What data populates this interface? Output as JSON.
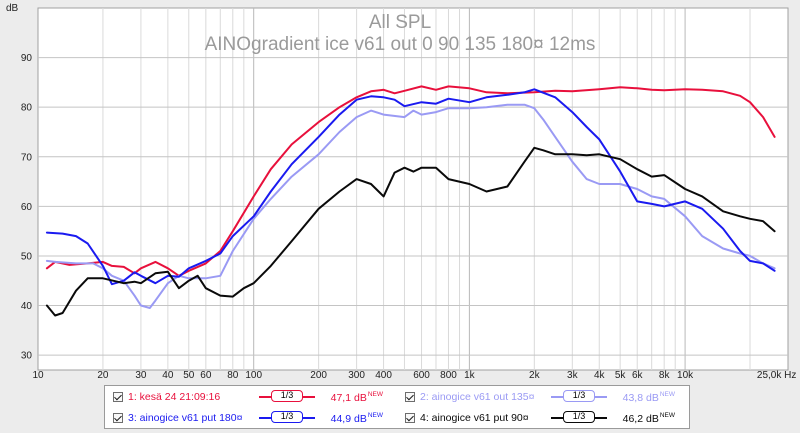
{
  "chart_data": {
    "type": "line",
    "title": "All SPL",
    "subtitle": "AINOgradient ice v61 out 0 90 135 180¤ 12ms",
    "ylabel": "dB",
    "xlabel": "",
    "x_scale": "log",
    "xlim": [
      10,
      30000
    ],
    "ylim": [
      27,
      100
    ],
    "grid": true,
    "x_ticks": [
      {
        "v": 10,
        "label": "10"
      },
      {
        "v": 20,
        "label": "20"
      },
      {
        "v": 30,
        "label": "30"
      },
      {
        "v": 40,
        "label": "40"
      },
      {
        "v": 50,
        "label": "50"
      },
      {
        "v": 60,
        "label": "60"
      },
      {
        "v": 80,
        "label": "80"
      },
      {
        "v": 100,
        "label": "100"
      },
      {
        "v": 200,
        "label": "200"
      },
      {
        "v": 300,
        "label": "300"
      },
      {
        "v": 400,
        "label": "400"
      },
      {
        "v": 600,
        "label": "600"
      },
      {
        "v": 800,
        "label": "800"
      },
      {
        "v": 1000,
        "label": "1k"
      },
      {
        "v": 2000,
        "label": "2k"
      },
      {
        "v": 3000,
        "label": "3k"
      },
      {
        "v": 4000,
        "label": "4k"
      },
      {
        "v": 5000,
        "label": "5k"
      },
      {
        "v": 6000,
        "label": "6k"
      },
      {
        "v": 8000,
        "label": "8k"
      },
      {
        "v": 10000,
        "label": "10k"
      },
      {
        "v": 25000,
        "label": "25,0k Hz"
      }
    ],
    "y_ticks": [
      30,
      40,
      50,
      60,
      70,
      80,
      90
    ],
    "series": [
      {
        "name": "1: kesä 24 21:09:16",
        "color": "#e8103c",
        "x": [
          11,
          12,
          14,
          17,
          20,
          22,
          25,
          28,
          30,
          35,
          40,
          45,
          50,
          60,
          70,
          80,
          100,
          120,
          150,
          200,
          250,
          300,
          350,
          400,
          450,
          500,
          600,
          700,
          800,
          1000,
          1200,
          1500,
          2000,
          2500,
          3000,
          4000,
          5000,
          6000,
          7000,
          8000,
          10000,
          12000,
          15000,
          18000,
          20000,
          23000,
          26000
        ],
        "y": [
          47.5,
          48.8,
          48.2,
          48.5,
          48.8,
          48.0,
          47.8,
          46.5,
          47.5,
          48.8,
          47.5,
          46.0,
          47.0,
          48.5,
          51.0,
          55.0,
          62.0,
          67.5,
          72.5,
          77.0,
          80.0,
          82.0,
          83.2,
          83.5,
          82.8,
          83.3,
          84.2,
          83.5,
          84.2,
          83.8,
          83.0,
          82.8,
          83.0,
          83.3,
          83.2,
          83.6,
          84.0,
          83.8,
          83.5,
          83.4,
          83.6,
          83.5,
          83.2,
          82.3,
          81.0,
          78.0,
          74.0
        ]
      },
      {
        "name": "2: ainogice v61 out 135¤",
        "color": "#9a9af4",
        "x": [
          11,
          12,
          15,
          18,
          20,
          22,
          25,
          28,
          30,
          33,
          35,
          40,
          45,
          50,
          60,
          70,
          80,
          100,
          120,
          150,
          200,
          250,
          300,
          350,
          400,
          500,
          550,
          600,
          700,
          800,
          1000,
          1200,
          1500,
          1800,
          2000,
          2200,
          2500,
          3000,
          3500,
          4000,
          5000,
          6000,
          7000,
          8000,
          10000,
          12000,
          15000,
          18000,
          20000,
          23000,
          26000
        ],
        "y": [
          49.0,
          48.8,
          48.5,
          48.5,
          47.5,
          46.0,
          45.0,
          42.0,
          40.0,
          39.5,
          41.0,
          44.5,
          46.0,
          45.5,
          45.5,
          46.0,
          51.0,
          57.5,
          61.5,
          66.0,
          70.5,
          75.0,
          78.0,
          79.3,
          78.5,
          78.0,
          79.3,
          78.5,
          79.0,
          79.8,
          79.8,
          80.0,
          80.5,
          80.5,
          79.8,
          77.5,
          74.0,
          69.0,
          65.5,
          64.5,
          64.5,
          63.5,
          62.0,
          61.5,
          58.0,
          54.0,
          51.5,
          50.5,
          50.0,
          48.5,
          47.5
        ]
      },
      {
        "name": "3: ainogice v61 put 180¤",
        "color": "#1a1af0",
        "x": [
          11,
          13,
          15,
          17,
          20,
          22,
          25,
          28,
          30,
          35,
          40,
          45,
          50,
          60,
          70,
          80,
          100,
          120,
          150,
          200,
          250,
          300,
          350,
          400,
          450,
          500,
          600,
          700,
          800,
          1000,
          1200,
          1500,
          1800,
          2000,
          2500,
          3000,
          3500,
          4000,
          5000,
          6000,
          7000,
          8000,
          10000,
          12000,
          15000,
          18000,
          20000,
          23000,
          26000
        ],
        "y": [
          54.7,
          54.5,
          54.0,
          52.5,
          48.0,
          44.3,
          45.0,
          46.7,
          46.0,
          44.5,
          46.0,
          45.8,
          47.5,
          49.0,
          50.5,
          54.0,
          58.0,
          63.0,
          68.5,
          74.0,
          78.5,
          81.5,
          82.2,
          82.0,
          81.5,
          80.2,
          81.0,
          80.7,
          81.7,
          81.0,
          82.0,
          82.5,
          83.0,
          83.6,
          82.0,
          79.0,
          76.0,
          73.5,
          67.0,
          61.0,
          60.5,
          60.0,
          61.0,
          59.5,
          55.5,
          51.0,
          49.0,
          48.5,
          47.0
        ]
      },
      {
        "name": "4: ainogice v61 put 90¤",
        "color": "#0a0a0a",
        "x": [
          11,
          12,
          13,
          15,
          17,
          20,
          25,
          28,
          30,
          35,
          40,
          45,
          50,
          55,
          60,
          70,
          80,
          90,
          100,
          120,
          150,
          200,
          250,
          300,
          350,
          400,
          450,
          500,
          550,
          600,
          700,
          800,
          1000,
          1200,
          1500,
          1800,
          2000,
          2200,
          2500,
          3000,
          3500,
          4000,
          5000,
          6000,
          7000,
          8000,
          10000,
          12000,
          15000,
          18000,
          20000,
          23000,
          26000
        ],
        "y": [
          40.0,
          38.0,
          38.5,
          43.0,
          45.5,
          45.5,
          44.5,
          44.8,
          44.5,
          46.5,
          46.8,
          43.5,
          45.0,
          46.0,
          43.5,
          42.0,
          41.8,
          43.5,
          44.5,
          48.0,
          53.0,
          59.5,
          63.0,
          65.5,
          64.5,
          62.0,
          66.8,
          67.8,
          67.0,
          67.8,
          67.8,
          65.5,
          64.5,
          63.0,
          64.0,
          69.0,
          71.8,
          71.3,
          70.5,
          70.5,
          70.3,
          70.5,
          69.5,
          67.5,
          66.0,
          66.3,
          63.5,
          62.0,
          59.0,
          58.0,
          57.5,
          57.0,
          55.0
        ]
      }
    ]
  },
  "legend": [
    {
      "label": "1: kesä 24 21:09:16",
      "smoothing": "1/3",
      "level": "47,1 dB",
      "tag": "NEW",
      "color": "#e8103c"
    },
    {
      "label": "2: ainogice v61 out 135¤",
      "smoothing": "1/3",
      "level": "43,8 dB",
      "tag": "NEW",
      "color": "#9a9af4"
    },
    {
      "label": "3: ainogice v61 put 180¤",
      "smoothing": "1/3",
      "level": "44,9 dB",
      "tag": "NEW",
      "color": "#1a1af0"
    },
    {
      "label": "4: ainogice v61 put 90¤",
      "smoothing": "1/3",
      "level": "46,2 dB",
      "tag": "NEW",
      "color": "#0a0a0a"
    }
  ],
  "colors": {
    "background": "#ececec",
    "plot_background": "#ffffff",
    "grid": "#c8c8c8",
    "title": "#9a9a9a",
    "axis_text": "#222222"
  }
}
